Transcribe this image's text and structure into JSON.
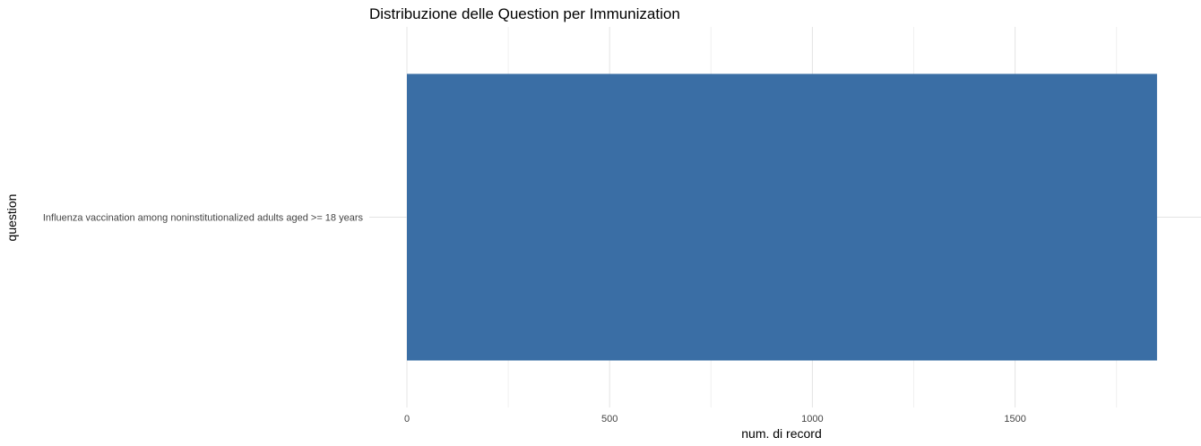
{
  "chart_data": {
    "type": "bar",
    "orientation": "horizontal",
    "title": "Distribuzione delle Question per Immunization",
    "xlabel": "num. di record",
    "ylabel": "question",
    "categories": [
      "Influenza vaccination among noninstitutionalized adults aged >= 18 years"
    ],
    "values": [
      1850
    ],
    "xlim": [
      0,
      1950
    ],
    "x_ticks": [
      0,
      500,
      1000,
      1500
    ],
    "x_tick_labels": [
      "0",
      "500",
      "1000",
      "1500"
    ],
    "x_minor_ticks": [
      250,
      750,
      1250,
      1750
    ],
    "grid": true,
    "bar_color": "#3a6ea5",
    "legend": "none"
  }
}
